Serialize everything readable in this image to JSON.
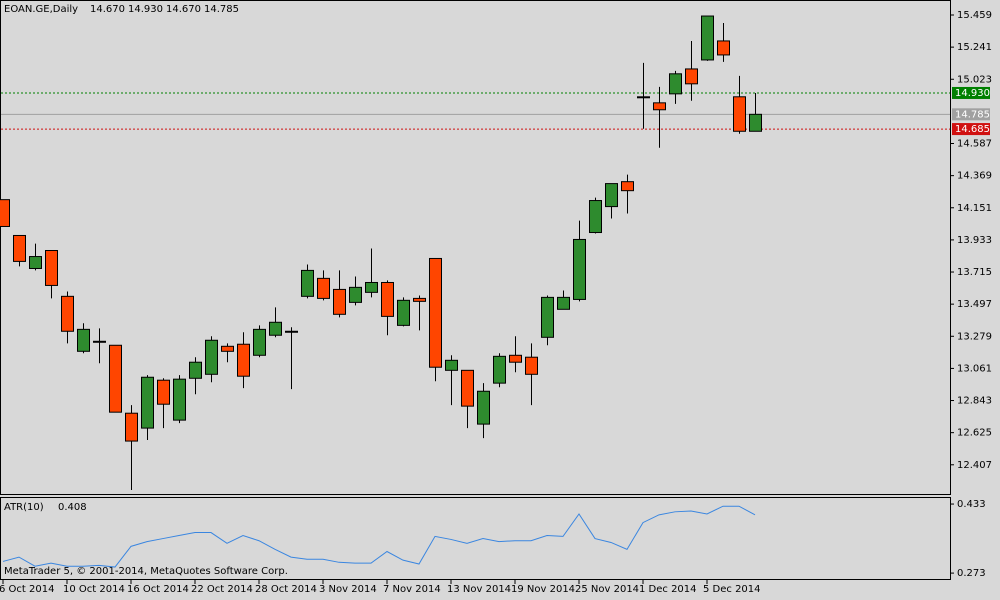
{
  "chart_data": [
    {
      "type": "candlestick",
      "title": "EOAN.GE,Daily",
      "title_values": [
        "14.670",
        "14.930",
        "14.670",
        "14.785"
      ],
      "categories": [
        "6 Oct 2014",
        null,
        null,
        null,
        "10 Oct 2014",
        null,
        null,
        null,
        "16 Oct 2014",
        null,
        null,
        null,
        "22 Oct 2014",
        null,
        null,
        null,
        "28 Oct 2014",
        null,
        null,
        null,
        "3 Nov 2014",
        null,
        null,
        null,
        "7 Nov 2014",
        null,
        null,
        null,
        "13 Nov 2014",
        null,
        null,
        null,
        "19 Nov 2014",
        null,
        null,
        null,
        "25 Nov 2014",
        null,
        null,
        null,
        "1 Dec 2014",
        null,
        null,
        null,
        "5 Dec 2014",
        null,
        null,
        null
      ],
      "open": [
        14.206,
        13.963,
        13.739,
        13.861,
        13.55,
        13.177,
        13.245,
        13.218,
        12.757,
        12.656,
        12.981,
        12.71,
        12.994,
        13.021,
        13.211,
        13.225,
        13.15,
        13.286,
        13.313,
        13.55,
        13.672,
        13.597,
        13.509,
        13.577,
        13.644,
        13.353,
        13.536,
        13.807,
        13.048,
        13.048,
        12.683,
        12.961,
        13.15,
        13.137,
        13.272,
        13.462,
        13.529,
        13.983,
        14.159,
        14.328,
        14.904,
        14.863,
        14.924,
        15.093,
        15.154,
        15.283,
        14.904,
        14.67
      ],
      "high": [
        14.206,
        13.963,
        13.908,
        13.861,
        13.583,
        13.367,
        13.333,
        13.218,
        12.812,
        13.015,
        12.994,
        13.015,
        13.137,
        13.279,
        13.231,
        13.306,
        13.353,
        13.475,
        13.34,
        13.766,
        13.726,
        13.726,
        13.685,
        13.875,
        13.658,
        13.543,
        13.556,
        13.807,
        13.15,
        13.048,
        12.961,
        13.164,
        13.279,
        13.231,
        13.556,
        13.59,
        14.064,
        14.22,
        14.315,
        14.376,
        15.134,
        14.971,
        15.08,
        15.283,
        15.452,
        15.405,
        15.046,
        14.93
      ],
      "low": [
        14.024,
        13.753,
        13.726,
        13.536,
        13.231,
        13.164,
        13.096,
        12.764,
        12.236,
        12.575,
        12.656,
        12.69,
        12.886,
        12.967,
        13.103,
        12.927,
        13.137,
        13.272,
        12.92,
        13.536,
        13.523,
        13.407,
        13.489,
        13.543,
        13.286,
        13.346,
        13.319,
        12.974,
        12.812,
        12.656,
        12.588,
        12.933,
        13.035,
        12.812,
        13.218,
        13.462,
        13.516,
        13.976,
        14.078,
        14.112,
        14.687,
        14.558,
        14.856,
        14.877,
        15.148,
        15.141,
        14.653,
        14.67
      ],
      "close": [
        14.024,
        13.787,
        13.82,
        13.624,
        13.313,
        13.326,
        13.245,
        12.764,
        12.568,
        13.001,
        12.818,
        12.988,
        13.103,
        13.252,
        13.177,
        13.008,
        13.326,
        13.374,
        13.313,
        13.726,
        13.536,
        13.428,
        13.611,
        13.644,
        13.414,
        13.523,
        13.516,
        13.069,
        13.116,
        12.805,
        12.906,
        13.143,
        13.103,
        13.021,
        13.543,
        13.543,
        13.936,
        14.2,
        14.315,
        14.267,
        14.904,
        14.816,
        15.06,
        14.992,
        15.452,
        15.188,
        14.67,
        14.785
      ],
      "up_color": "#2e8b2e",
      "down_color": "#ff4500",
      "ylim": [
        12.202,
        15.554
      ],
      "yticks": [
        15.459,
        15.241,
        15.023,
        14.587,
        14.369,
        14.151,
        13.933,
        13.715,
        13.497,
        13.279,
        13.061,
        12.843,
        12.625,
        12.407
      ],
      "levels": [
        {
          "value": 14.93,
          "label": "14.930",
          "color": "#008000",
          "style": "dotted"
        },
        {
          "value": 14.785,
          "label": "14.785",
          "color": "#a0a0a0",
          "style": "solid"
        },
        {
          "value": 14.685,
          "label": "14.685",
          "color": "#d01010",
          "style": "dotted"
        }
      ]
    },
    {
      "type": "line",
      "title": "ATR(10)",
      "color": "#3a86e0",
      "values": [
        0.3,
        0.31,
        0.289,
        0.296,
        0.289,
        0.289,
        0.291,
        0.287,
        0.335,
        0.346,
        0.353,
        0.36,
        0.367,
        0.367,
        0.342,
        0.36,
        0.348,
        0.328,
        0.31,
        0.305,
        0.305,
        0.298,
        0.296,
        0.296,
        0.323,
        0.303,
        0.294,
        0.358,
        0.351,
        0.342,
        0.353,
        0.346,
        0.348,
        0.348,
        0.36,
        0.358,
        0.41,
        0.353,
        0.344,
        0.328,
        0.39,
        0.408,
        0.415,
        0.417,
        0.41,
        0.428,
        0.428,
        0.408
      ],
      "ylim": [
        0.257,
        0.447
      ],
      "yticks": [
        0.433,
        0.273
      ]
    }
  ],
  "watermark": "MetaTrader 5, © 2001-2014, MetaQuotes Software Corp."
}
